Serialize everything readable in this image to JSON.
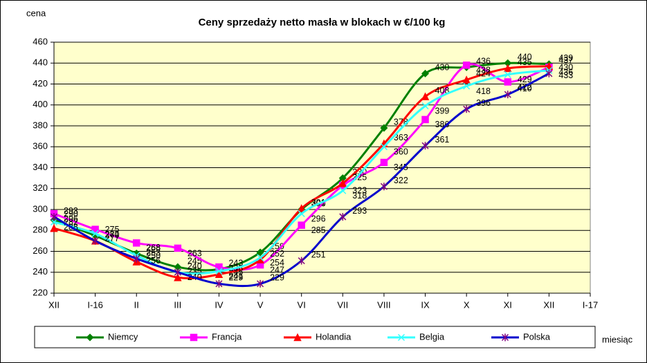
{
  "chart_data": {
    "type": "line",
    "title": "Ceny sprzedaży netto masła w blokach w €/100 kg",
    "y_label": "cena",
    "x_label": "miesiąc",
    "categories": [
      "XII",
      "I-16",
      "II",
      "III",
      "IV",
      "V",
      "VI",
      "VII",
      "VIII",
      "IX",
      "X",
      "XI",
      "XII",
      "I-17"
    ],
    "series": [
      {
        "name": "Niemcy",
        "color": "#008000",
        "marker": "diamond",
        "values": [
          290,
          275,
          258,
          245,
          243,
          259,
          300,
          330,
          378,
          430,
          436,
          440,
          439,
          null
        ]
      },
      {
        "name": "Francja",
        "color": "#ff00ff",
        "marker": "square",
        "values": [
          296,
          281,
          268,
          263,
          245,
          247,
          285,
          323,
          345,
          386,
          438,
          422,
          436,
          null
        ]
      },
      {
        "name": "Holandia",
        "color": "#ff0000",
        "marker": "triangle",
        "values": [
          282,
          270,
          250,
          235,
          238,
          252,
          301,
          325,
          363,
          408,
          424,
          435,
          437,
          null
        ]
      },
      {
        "name": "Belgia",
        "color": "#33ffff",
        "marker": "x",
        "values": [
          288,
          277,
          256,
          240,
          241,
          254,
          296,
          318,
          360,
          399,
          418,
          429,
          433,
          null
        ]
      },
      {
        "name": "Polska",
        "color": "#0000cc",
        "marker": "star",
        "values": [
          293,
          270,
          253,
          240,
          229,
          229,
          251,
          293,
          322,
          361,
          396,
          410,
          430,
          null
        ]
      }
    ],
    "ylim": [
      220,
      460
    ],
    "yticks": [
      220,
      240,
      260,
      280,
      300,
      320,
      340,
      360,
      380,
      400,
      420,
      440,
      460
    ],
    "grid": true,
    "legend": "bottom",
    "plot_background": "#ffffcc"
  }
}
